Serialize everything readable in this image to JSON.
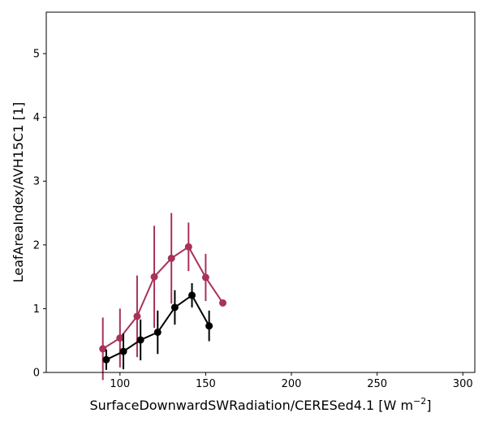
{
  "chart_data": {
    "type": "line",
    "title": "",
    "xlabel": "SurfaceDownwardSWRadiation/CERESed4.1 [W m",
    "xlabel_sup": "−2",
    "xlabel_suffix": "]",
    "ylabel": "LeafAreaIndex/AVH15C1 [1]",
    "xlim": [
      57,
      307
    ],
    "ylim": [
      0,
      5.65
    ],
    "xticks": [
      100,
      150,
      200,
      250,
      300
    ],
    "yticks": [
      0,
      1,
      2,
      3,
      4,
      5
    ],
    "grid": false,
    "series": [
      {
        "color": "#a8325a",
        "points": [
          {
            "x": 90,
            "y": 0.37,
            "err": 0.49
          },
          {
            "x": 100,
            "y": 0.54,
            "err": 0.46
          },
          {
            "x": 110,
            "y": 0.88,
            "err": 0.64
          },
          {
            "x": 120,
            "y": 1.5,
            "err": 0.8
          },
          {
            "x": 130,
            "y": 1.79,
            "err": 0.71
          },
          {
            "x": 140,
            "y": 1.97,
            "err": 0.38
          },
          {
            "x": 150,
            "y": 1.49,
            "err": 0.37
          },
          {
            "x": 160,
            "y": 1.09,
            "err": 0
          }
        ]
      },
      {
        "color": "#000000",
        "points": [
          {
            "x": 92,
            "y": 0.2,
            "err": 0.16
          },
          {
            "x": 102,
            "y": 0.33,
            "err": 0.28
          },
          {
            "x": 112,
            "y": 0.51,
            "err": 0.32
          },
          {
            "x": 122,
            "y": 0.63,
            "err": 0.34
          },
          {
            "x": 132,
            "y": 1.02,
            "err": 0.27
          },
          {
            "x": 142,
            "y": 1.21,
            "err": 0.19
          },
          {
            "x": 152,
            "y": 0.73,
            "err": 0.24
          }
        ]
      }
    ]
  }
}
